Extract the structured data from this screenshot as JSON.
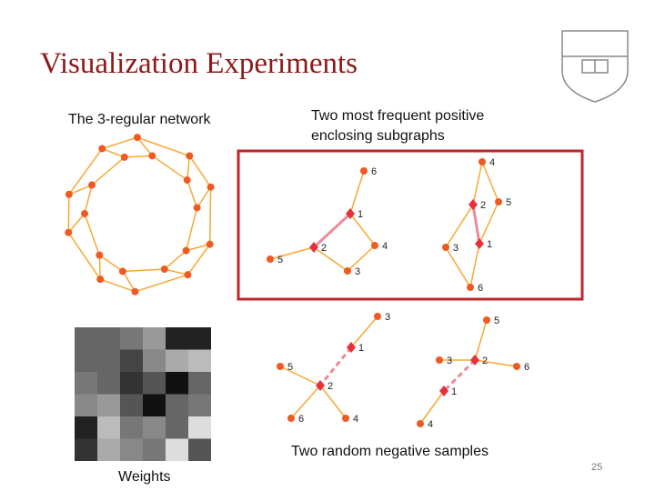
{
  "title": "Visualization Experiments",
  "network": {
    "caption": "The 3-regular network"
  },
  "positive": {
    "caption": "Two most frequent positive enclosing subgraphs",
    "subgraphs": [
      {
        "nodes": [
          "6",
          "1",
          "2",
          "4",
          "5",
          "3"
        ]
      },
      {
        "nodes": [
          "4",
          "2",
          "5",
          "3",
          "1",
          "6"
        ]
      }
    ]
  },
  "negative": {
    "caption": "Two random negative samples",
    "subgraphs": [
      {
        "nodes": [
          "3",
          "1",
          "5",
          "2",
          "6",
          "4"
        ]
      },
      {
        "nodes": [
          "5",
          "2",
          "3",
          "6",
          "1",
          "4"
        ]
      }
    ]
  },
  "weights": {
    "caption": "Weights"
  },
  "page_number": "25"
}
